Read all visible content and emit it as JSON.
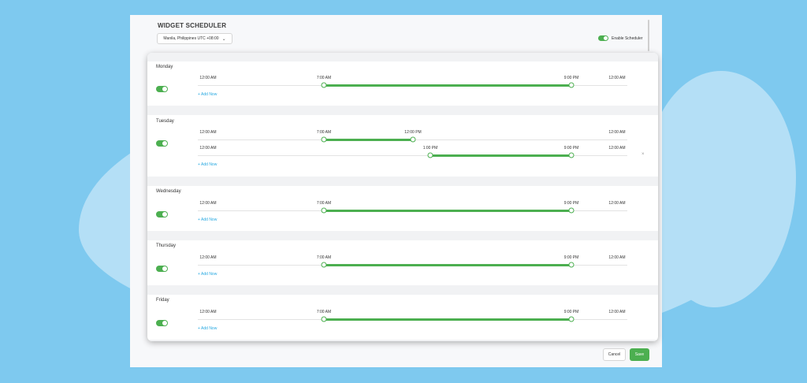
{
  "header": {
    "title": "WIDGET SCHEDULER",
    "timezone": "Manila, Philippines UTC +08:00",
    "enable_label": "Enable Scheduler"
  },
  "add_now_label": "+ Add Now",
  "days": [
    {
      "name": "Monday",
      "rows": [
        {
          "start_label": "7:00 AM",
          "end_label": "9:00 PM"
        }
      ]
    },
    {
      "name": "Tuesday",
      "rows": [
        {
          "start_label": "7:00 AM",
          "end_label": "12:00 PM"
        },
        {
          "start_label": "1:00 PM",
          "end_label": "9:00 PM"
        }
      ]
    },
    {
      "name": "Wednesday",
      "rows": [
        {
          "start_label": "7:00 AM",
          "end_label": "9:00 PM"
        }
      ]
    },
    {
      "name": "Thursday",
      "rows": [
        {
          "start_label": "7:00 AM",
          "end_label": "9:00 PM"
        }
      ]
    },
    {
      "name": "Friday",
      "rows": [
        {
          "start_label": "7:00 AM",
          "end_label": "9:00 PM"
        }
      ]
    }
  ],
  "range": {
    "min_label": "12:00 AM",
    "max_label": "12:00 AM"
  },
  "footer": {
    "cancel": "Cancel",
    "save": "Save"
  },
  "colors": {
    "accent": "#4caf50",
    "link": "#29a9e1"
  },
  "icons": {
    "close": "close-icon",
    "dropdown": "chevron-down-icon"
  }
}
